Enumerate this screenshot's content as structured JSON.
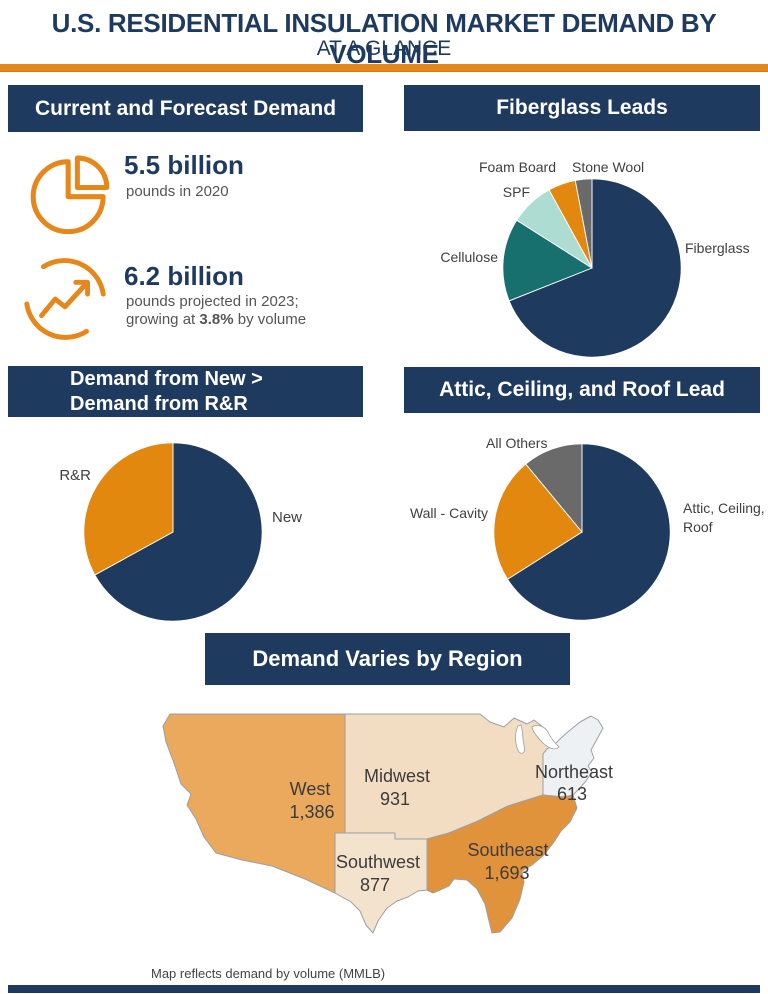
{
  "header": {
    "title": "U.S. RESIDENTIAL INSULATION MARKET DEMAND BY VOLUME",
    "subtitle": "AT A GLANCE"
  },
  "colors": {
    "navy": "#1F3A5F",
    "orange": "#E2880F",
    "teal": "#176F6E",
    "mint": "#ACDCD2",
    "slice_gray": "#6A6A6A",
    "divider_orange": "#E5871A"
  },
  "panel_demand": {
    "header": "Current and Forecast Demand",
    "stat1": {
      "icon": "pie-outline-icon",
      "value": "5.5 billion",
      "desc": "pounds in 2020"
    },
    "stat2": {
      "icon": "growth-arrow-icon",
      "value": "6.2 billion",
      "desc_line1": "pounds projected in 2023;",
      "desc_line2_pre": "growing at ",
      "desc_line2_bold": "3.8%",
      "desc_line2_post": " by volume"
    }
  },
  "panel_fiberglass": {
    "header": "Fiberglass Leads"
  },
  "panel_newrr": {
    "header_line1": "Demand from New >",
    "header_line2": "Demand from R&R"
  },
  "panel_attic": {
    "header": "Attic, Ceiling, and Roof Lead"
  },
  "panel_region": {
    "header": "Demand Varies by Region",
    "footnote": "Map reflects demand by volume (MMLB)"
  },
  "chart_data": [
    {
      "type": "pie",
      "title": "Fiberglass Leads",
      "labels": [
        "Fiberglass",
        "Cellulose",
        "SPF",
        "Foam Board",
        "Stone Wool"
      ],
      "values": [
        69,
        15,
        8,
        5,
        3
      ],
      "values_note": "percent of volume, estimated from slice angles",
      "colors": [
        "#1F3A5F",
        "#176F6E",
        "#ACDCD2",
        "#E2880F",
        "#6A6A6A"
      ],
      "start": "12 o'clock",
      "direction": "clockwise",
      "legend_position": "around-pie"
    },
    {
      "type": "pie",
      "title": "Demand from New > Demand from R&R",
      "labels": [
        "New",
        "R&R"
      ],
      "values": [
        67,
        33
      ],
      "values_note": "percent of volume, estimated from slice angles",
      "colors": [
        "#1F3A5F",
        "#E2880F"
      ],
      "start": "12 o'clock",
      "direction": "clockwise",
      "legend_position": "around-pie"
    },
    {
      "type": "pie",
      "title": "Attic, Ceiling, and Roof Lead",
      "labels": [
        "Attic, Ceiling, Roof",
        "Wall - Cavity",
        "All Others"
      ],
      "values": [
        66,
        23,
        11
      ],
      "values_note": "percent of volume, estimated from slice angles",
      "colors": [
        "#1F3A5F",
        "#E2880F",
        "#6A6A6A"
      ],
      "start": "12 o'clock",
      "direction": "clockwise",
      "legend_position": "around-pie"
    },
    {
      "type": "map",
      "title": "Demand Varies by Region",
      "units": "MMLB",
      "regions": [
        {
          "name": "West",
          "value": 1386,
          "label": "1,386",
          "fill": "#EAA95D"
        },
        {
          "name": "Midwest",
          "value": 931,
          "label": "931",
          "fill": "#F3DDC2"
        },
        {
          "name": "Northeast",
          "value": 613,
          "label": "613",
          "fill": "#EEF1F3"
        },
        {
          "name": "Southwest",
          "value": 877,
          "label": "877",
          "fill": "#F4E3CC"
        },
        {
          "name": "Southeast",
          "value": 1693,
          "label": "1,693",
          "fill": "#E1933C"
        }
      ]
    }
  ]
}
